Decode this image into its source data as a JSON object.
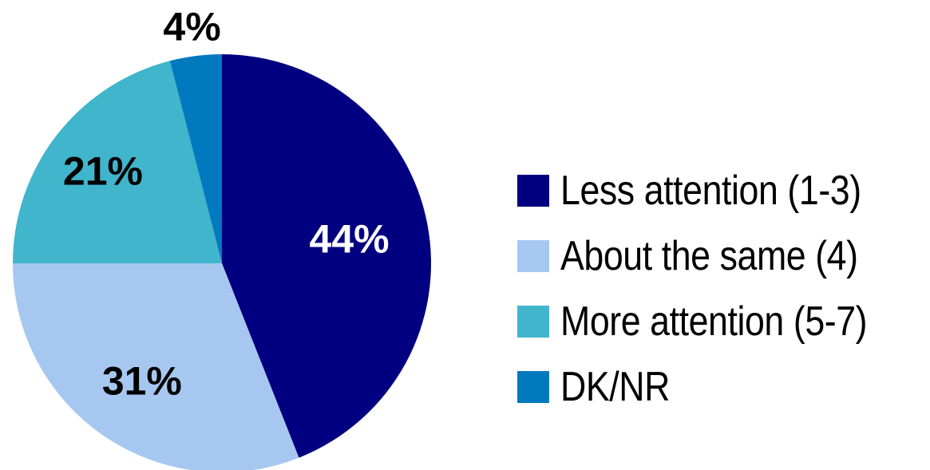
{
  "chart_data": {
    "type": "pie",
    "categories": [
      "Less attention (1-3)",
      "About the same (4)",
      "More attention (5-7)",
      "DK/NR"
    ],
    "values": [
      44,
      31,
      21,
      4
    ],
    "labels": [
      "44%",
      "31%",
      "21%",
      "4%"
    ],
    "colors": [
      "#000080",
      "#a6c8f0",
      "#40b5cc",
      "#0079bf"
    ],
    "label_colors": [
      "#ffffff",
      "#000000",
      "#000000",
      "#000000"
    ],
    "start": "12 o'clock",
    "direction": "clockwise",
    "legend_position": "right"
  }
}
